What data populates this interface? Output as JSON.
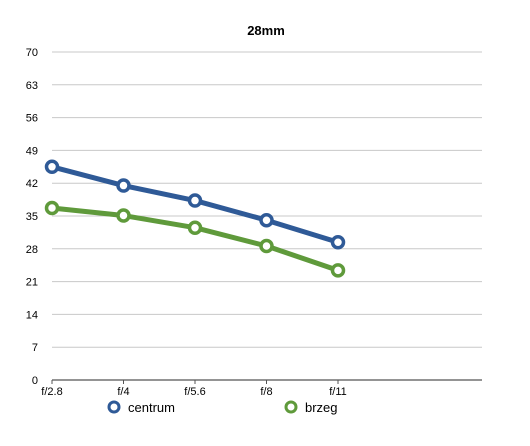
{
  "chart_data": {
    "type": "line",
    "title": "28mm",
    "xlabel": "",
    "ylabel": "",
    "categories": [
      "f/2.8",
      "f/4",
      "f/5.6",
      "f/8",
      "f/11"
    ],
    "ylim": [
      0,
      70
    ],
    "yticks": [
      0,
      7,
      14,
      21,
      28,
      35,
      42,
      49,
      56,
      63,
      70
    ],
    "grid": true,
    "legend_position": "bottom",
    "series": [
      {
        "name": "centrum",
        "color": "#2f5a97",
        "values": [
          45.5,
          41.5,
          38.3,
          34.1,
          29.4
        ]
      },
      {
        "name": "brzeg",
        "color": "#5f9a3b",
        "values": [
          36.7,
          35.1,
          32.5,
          28.6,
          23.4
        ]
      }
    ]
  }
}
